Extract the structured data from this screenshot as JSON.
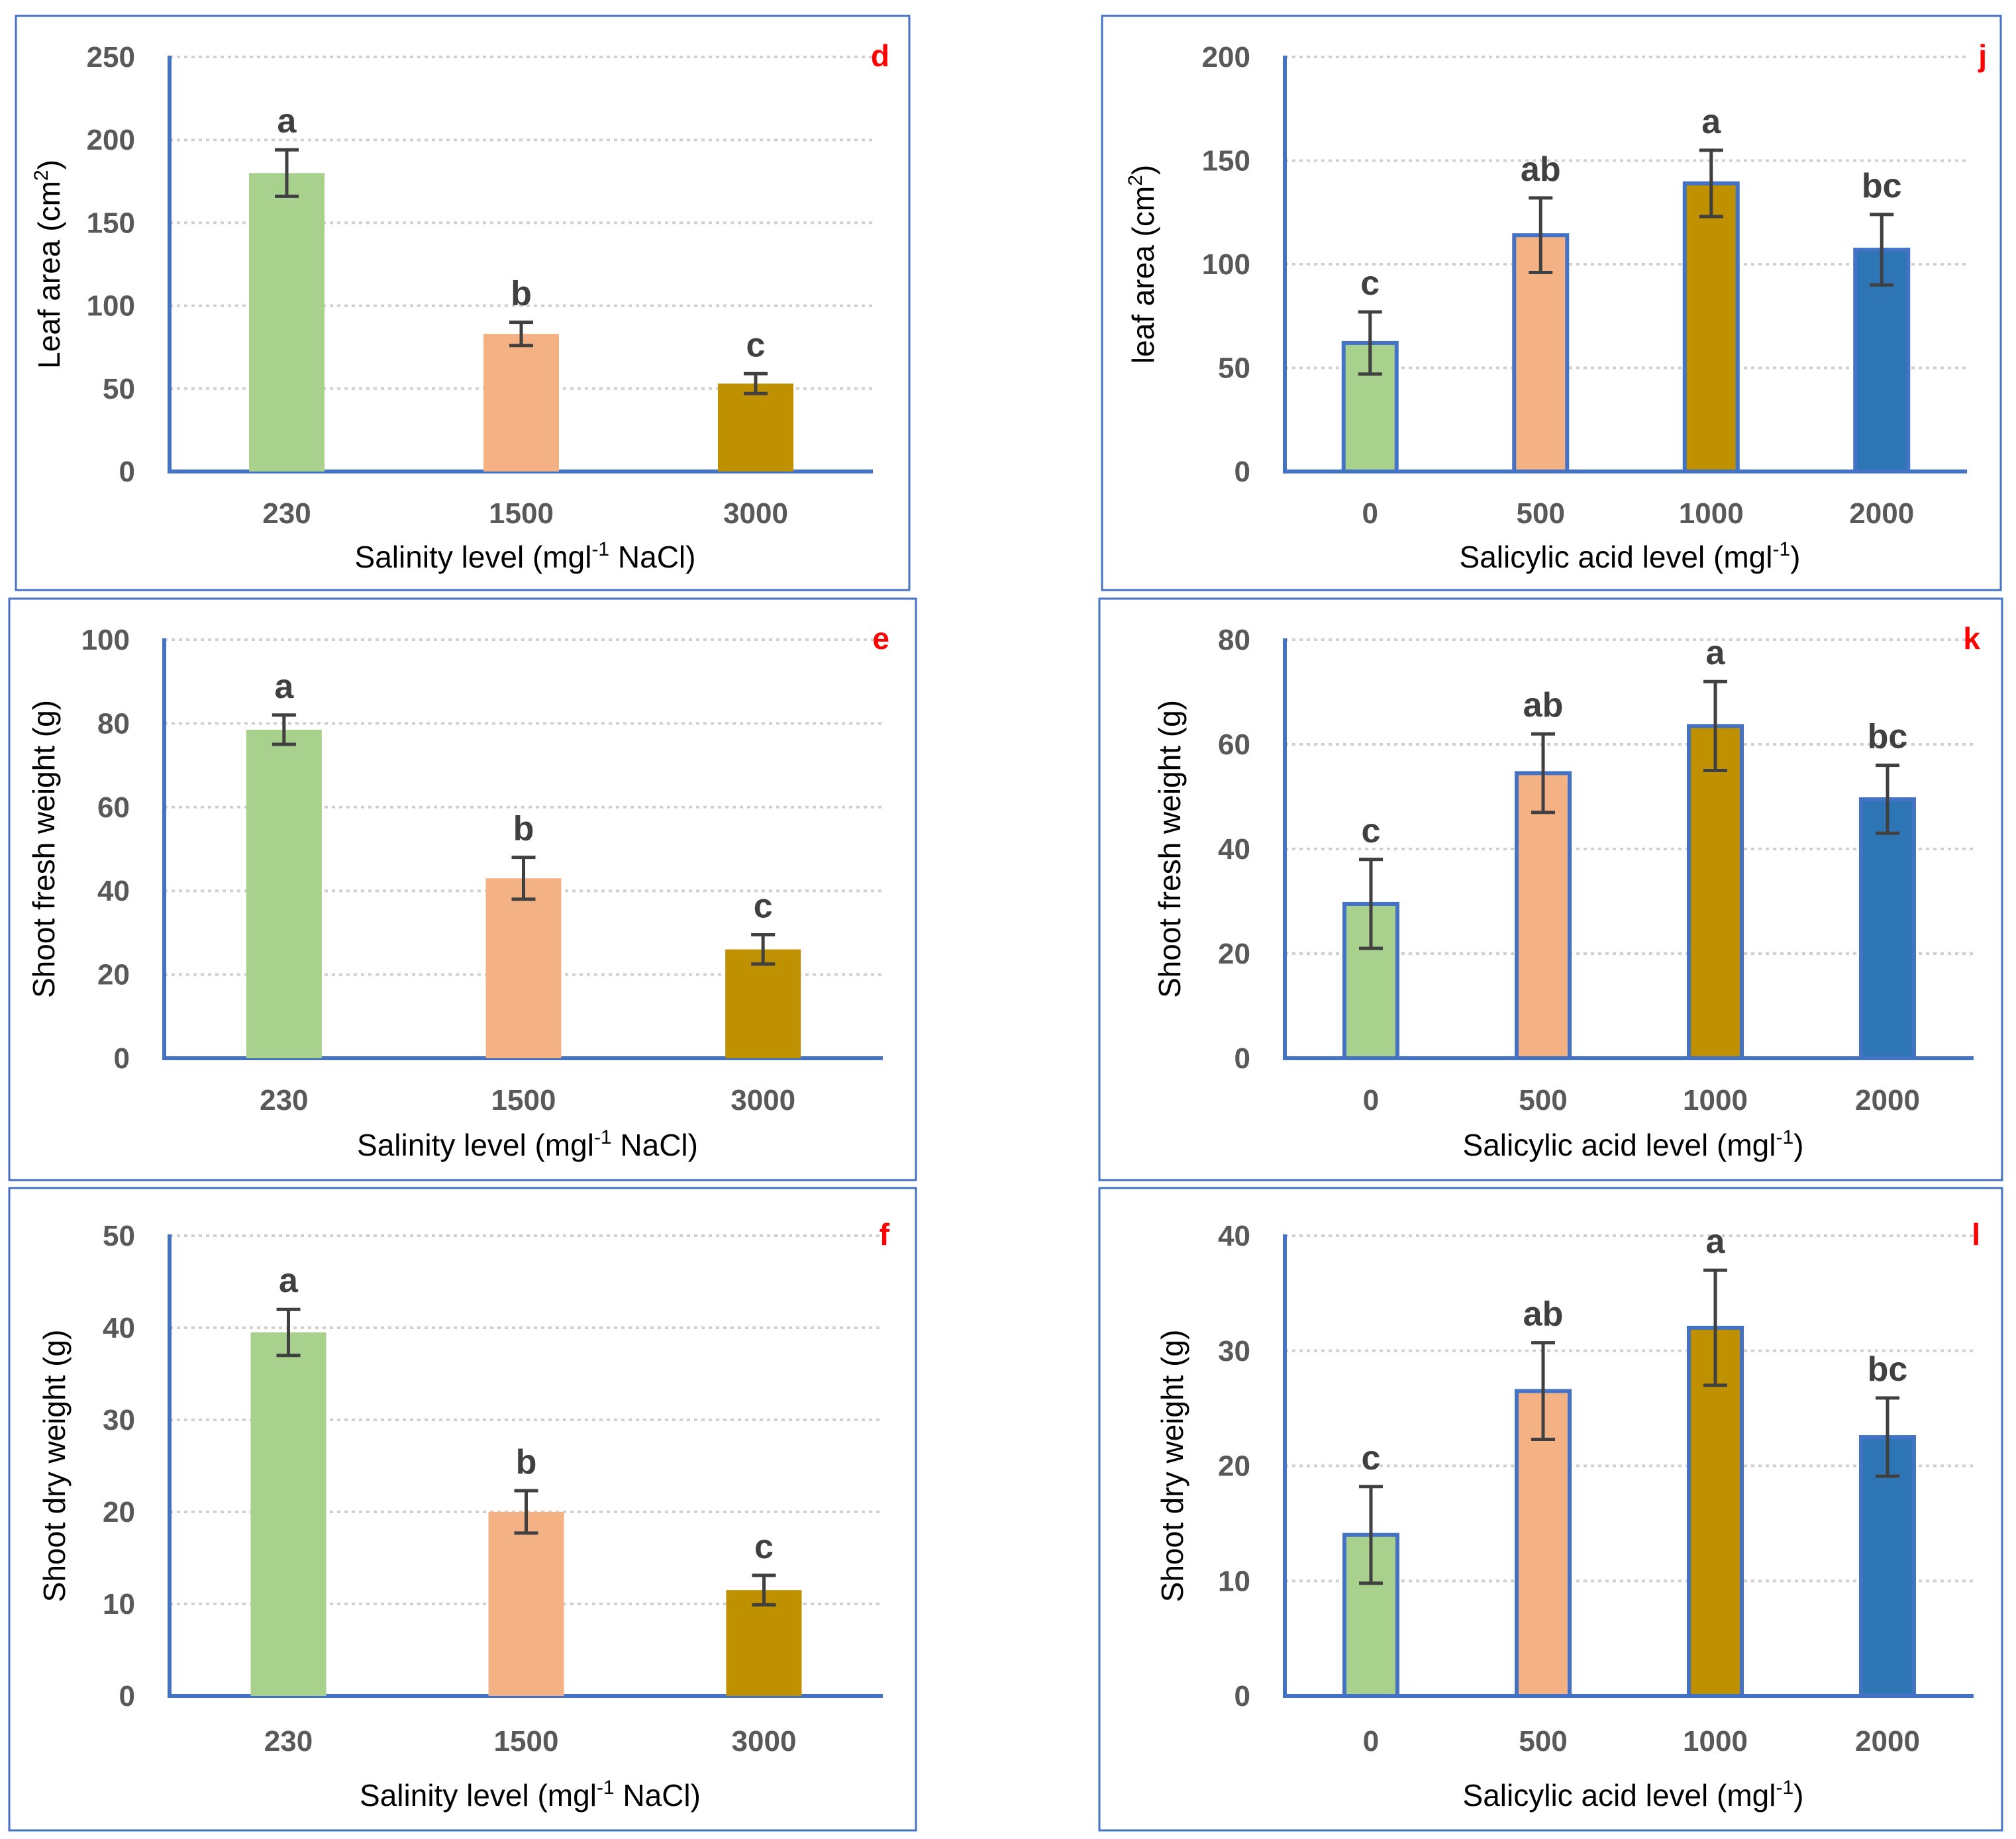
{
  "palette": {
    "green": "#a9d18e",
    "salmon": "#f4b183",
    "gold": "#bf9000",
    "blue": "#2e75b6",
    "outline": "#4472c4",
    "letter": "#ff0000"
  },
  "chart_data": [
    {
      "panel": "d",
      "type": "bar",
      "ylabel": "Leaf area (cm",
      "ylabel_sup": "2",
      "ylabel_end": ")",
      "xlabel": "Salinity level (mgl",
      "xlabel_sup": "-1",
      "xlabel_end": " NaCl)",
      "ylim": [
        0,
        250
      ],
      "ticks": [
        0,
        50,
        100,
        150,
        200,
        250
      ],
      "categories": [
        "230",
        "1500",
        "3000"
      ],
      "values": [
        180,
        83,
        53
      ],
      "errors": [
        14,
        7,
        6
      ],
      "letters": [
        "a",
        "b",
        "c"
      ],
      "colors": [
        "green",
        "salmon",
        "gold"
      ],
      "outlined": false
    },
    {
      "panel": "j",
      "type": "bar",
      "ylabel": "leaf area (cm",
      "ylabel_sup": "2",
      "ylabel_end": ")",
      "xlabel": "Salicylic acid level (mgl",
      "xlabel_sup": "-1",
      "xlabel_end": ")",
      "ylim": [
        0,
        200
      ],
      "ticks": [
        0,
        50,
        100,
        150,
        200
      ],
      "categories": [
        "0",
        "500",
        "1000",
        "2000"
      ],
      "values": [
        62,
        114,
        139,
        107
      ],
      "errors": [
        15,
        18,
        16,
        17
      ],
      "letters": [
        "c",
        "ab",
        "a",
        "bc"
      ],
      "colors": [
        "green",
        "salmon",
        "gold",
        "blue"
      ],
      "outlined": true
    },
    {
      "panel": "e",
      "type": "bar",
      "ylabel": "Shoot fresh weight (g)",
      "ylabel_sup": "",
      "ylabel_end": "",
      "xlabel": "Salinity level (mgl",
      "xlabel_sup": "-1",
      "xlabel_end": " NaCl)",
      "ylim": [
        0,
        100
      ],
      "ticks": [
        0,
        20,
        40,
        60,
        80,
        100
      ],
      "categories": [
        "230",
        "1500",
        "3000"
      ],
      "values": [
        78.5,
        43,
        26
      ],
      "errors": [
        3.5,
        5,
        3.5
      ],
      "letters": [
        "a",
        "b",
        "c"
      ],
      "colors": [
        "green",
        "salmon",
        "gold"
      ],
      "outlined": false
    },
    {
      "panel": "k",
      "type": "bar",
      "ylabel": "Shoot fresh weight (g)",
      "ylabel_sup": "",
      "ylabel_end": "",
      "xlabel": "Salicylic acid level (mgl",
      "xlabel_sup": "-1",
      "xlabel_end": ")",
      "ylim": [
        0,
        80
      ],
      "ticks": [
        0,
        20,
        40,
        60,
        80
      ],
      "categories": [
        "0",
        "500",
        "1000",
        "2000"
      ],
      "values": [
        29.5,
        54.5,
        63.5,
        49.5
      ],
      "errors": [
        8.5,
        7.5,
        8.5,
        6.5
      ],
      "letters": [
        "c",
        "ab",
        "a",
        "bc"
      ],
      "colors": [
        "green",
        "salmon",
        "gold",
        "blue"
      ],
      "outlined": true
    },
    {
      "panel": "f",
      "type": "bar",
      "ylabel": "Shoot dry weight (g)",
      "ylabel_sup": "",
      "ylabel_end": "",
      "xlabel": "Salinity level (mgl",
      "xlabel_sup": "-1",
      "xlabel_end": " NaCl)",
      "ylim": [
        0,
        50
      ],
      "ticks": [
        0,
        10,
        20,
        30,
        40,
        50
      ],
      "categories": [
        "230",
        "1500",
        "3000"
      ],
      "values": [
        39.5,
        20,
        11.5
      ],
      "errors": [
        2.5,
        2.3,
        1.6
      ],
      "letters": [
        "a",
        "b",
        "c"
      ],
      "colors": [
        "green",
        "salmon",
        "gold"
      ],
      "outlined": false
    },
    {
      "panel": "l",
      "type": "bar",
      "ylabel": "Shoot dry weight (g)",
      "ylabel_sup": "",
      "ylabel_end": "",
      "xlabel": "Salicylic acid level (mgl",
      "xlabel_sup": "-1",
      "xlabel_end": ")",
      "ylim": [
        0,
        40
      ],
      "ticks": [
        0,
        10,
        20,
        30,
        40
      ],
      "categories": [
        "0",
        "500",
        "1000",
        "2000"
      ],
      "values": [
        14,
        26.5,
        32,
        22.5
      ],
      "errors": [
        4.2,
        4.2,
        5,
        3.4
      ],
      "letters": [
        "c",
        "ab",
        "a",
        "bc"
      ],
      "colors": [
        "green",
        "salmon",
        "gold",
        "blue"
      ],
      "outlined": true
    }
  ]
}
